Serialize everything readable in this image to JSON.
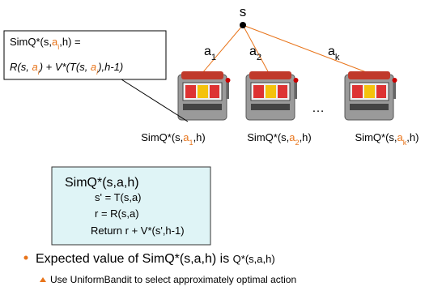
{
  "root": "s",
  "actions": [
    [
      {
        "text": "a"
      },
      {
        "text": "1",
        "sub": true
      }
    ],
    [
      {
        "text": "a"
      },
      {
        "text": "2",
        "sub": true
      }
    ],
    [
      {
        "text": "a"
      },
      {
        "text": "k",
        "sub": true
      }
    ]
  ],
  "ellipsis": "…",
  "leaves": [
    [
      {
        "text": "SimQ*(s,"
      },
      {
        "text": "a",
        "color": "#e8741a"
      },
      {
        "text": "1",
        "color": "#e8741a",
        "sub": true
      },
      {
        "text": ",h)"
      }
    ],
    [
      {
        "text": "SimQ*(s,"
      },
      {
        "text": "a",
        "color": "#e8741a"
      },
      {
        "text": "2",
        "color": "#e8741a",
        "sub": true
      },
      {
        "text": ",h)"
      }
    ],
    [
      {
        "text": "SimQ*(s,"
      },
      {
        "text": "a",
        "color": "#e8741a"
      },
      {
        "text": "k",
        "color": "#e8741a",
        "sub": true
      },
      {
        "text": ",h)"
      }
    ]
  ],
  "formula": [
    [
      {
        "text": "SimQ*(s,"
      },
      {
        "text": "a",
        "color": "#e8741a"
      },
      {
        "text": "i",
        "color": "#e8741a",
        "sub": true
      },
      {
        "text": ",h)  ="
      }
    ],
    [
      {
        "text": "R(s, "
      },
      {
        "text": "a",
        "color": "#e8741a"
      },
      {
        "text": "i",
        "color": "#e8741a",
        "sub": true
      },
      {
        "text": ") + V*(T(s, "
      },
      {
        "text": "a",
        "color": "#e8741a"
      },
      {
        "text": "i",
        "color": "#e8741a",
        "sub": true
      },
      {
        "text": "),h-1)"
      }
    ]
  ],
  "procedure": {
    "title": "SimQ*(s,a,h)",
    "lines": [
      "s' = T(s,a)",
      "r = R(s,a)",
      "Return  r + V*(s',h-1)"
    ]
  },
  "bullet": {
    "text": "Expected value of SimQ*(s,a,h) is",
    "note": "Q*(s,a,h)"
  },
  "sub_bullet": "Use UniformBandit to select approximately optimal action"
}
